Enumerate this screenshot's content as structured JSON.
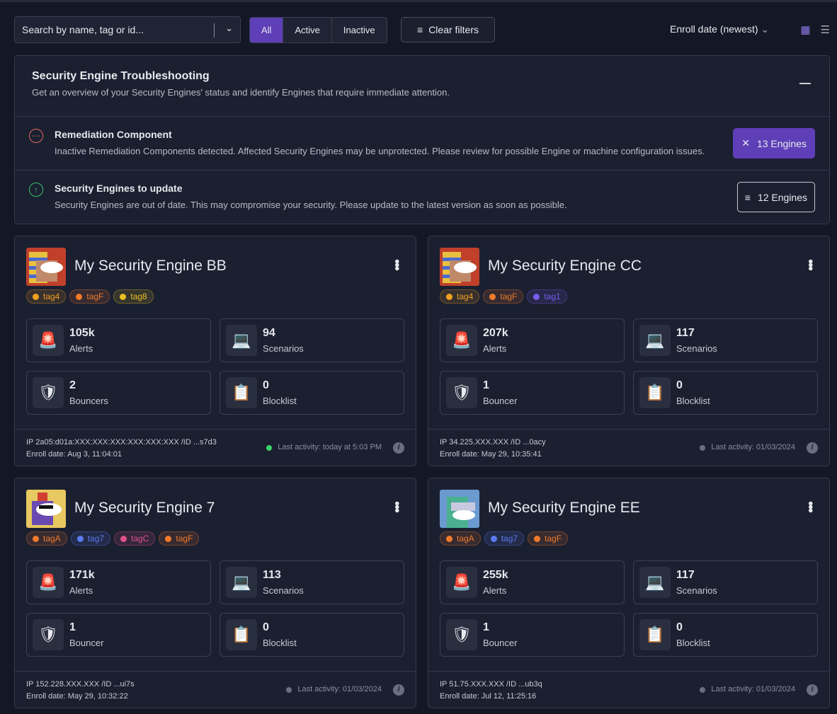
{
  "toolbar": {
    "search_placeholder": "Search by name, tag or id...",
    "filters": [
      "All",
      "Active",
      "Inactive"
    ],
    "active_filter": "All",
    "clear_filters": "Clear filters",
    "sort": "Enroll date (newest)"
  },
  "troubleshooting": {
    "title": "Security Engine Troubleshooting",
    "subtitle": "Get an overview of your Security Engines' status and identify Engines that require immediate attention.",
    "items": [
      {
        "title": "Remediation Component",
        "text": "Inactive Remediation Components detected. Affected Security Engines may be unprotected. Please review for possible Engine or machine configuration issues.",
        "button": "13 Engines",
        "icon": "neutral-face-icon",
        "color": "#e06a5a"
      },
      {
        "title": "Security Engines to update",
        "text": "Security Engines are out of date. This may compromise your security. Please update to the latest version as soon as possible.",
        "button": "12 Engines",
        "icon": "arrow-up-circle-icon",
        "color": "#3cc26a"
      }
    ]
  },
  "tag_colors": {
    "tag4": "#f0a020",
    "tagF": "#f07a2a",
    "tag8": "#e8c020",
    "tag1": "#7a5cf0",
    "tagA": "#f07a2a",
    "tag7": "#5a7af0",
    "tagC": "#e0508a"
  },
  "engines": [
    {
      "name": "My Security Engine BB",
      "tags": [
        "tag4",
        "tagF",
        "tag8"
      ],
      "alerts": "105k",
      "alerts_label": "Alerts",
      "scenarios": "94",
      "scenarios_label": "Scenarios",
      "bouncers": "2",
      "bouncers_label": "Bouncers",
      "blocklist": "0",
      "blocklist_label": "Blocklist",
      "ip": "IP 2a05:d01a:XXX:XXX:XXX:XXX:XXX:XXX /ID ...s7d3",
      "enroll": "Enroll date: Aug 3, 11:04:01",
      "last": "Last activity: today at 5:03 PM",
      "status_color": "#3cd26a",
      "avatar": "pharaoh"
    },
    {
      "name": "My Security Engine CC",
      "tags": [
        "tag4",
        "tagF",
        "tag1"
      ],
      "alerts": "207k",
      "alerts_label": "Alerts",
      "scenarios": "117",
      "scenarios_label": "Scenarios",
      "bouncers": "1",
      "bouncers_label": "Bouncer",
      "blocklist": "0",
      "blocklist_label": "Blocklist",
      "ip": "IP 34.225.XXX.XXX /ID ...0acy",
      "enroll": "Enroll date: May 29, 10:35:41",
      "last": "Last activity: 01/03/2024",
      "status_color": "#6a6f80",
      "avatar": "pharaoh"
    },
    {
      "name": "My Security Engine 7",
      "tags": [
        "tagA",
        "tag7",
        "tagC",
        "tagF"
      ],
      "alerts": "171k",
      "alerts_label": "Alerts",
      "scenarios": "113",
      "scenarios_label": "Scenarios",
      "bouncers": "1",
      "bouncers_label": "Bouncer",
      "blocklist": "0",
      "blocklist_label": "Blocklist",
      "ip": "IP 152.228.XXX.XXX /ID ...ui7s",
      "enroll": "Enroll date: May 29, 10:32:22",
      "last": "Last activity: 01/03/2024",
      "status_color": "#6a6f80",
      "avatar": "punk"
    },
    {
      "name": "My Security Engine EE",
      "tags": [
        "tagA",
        "tag7",
        "tagF"
      ],
      "alerts": "255k",
      "alerts_label": "Alerts",
      "scenarios": "117",
      "scenarios_label": "Scenarios",
      "bouncers": "1",
      "bouncers_label": "Bouncer",
      "blocklist": "0",
      "blocklist_label": "Blocklist",
      "ip": "IP 51.75.XXX.XXX /ID ...ub3q",
      "enroll": "Enroll date: Jul 12, 11:25:16",
      "last": "Last activity: 01/03/2024",
      "status_color": "#6a6f80",
      "avatar": "vr"
    }
  ],
  "colors": {
    "accent": "#5e3fb8",
    "background": "#141726",
    "panel": "#1b2031"
  }
}
